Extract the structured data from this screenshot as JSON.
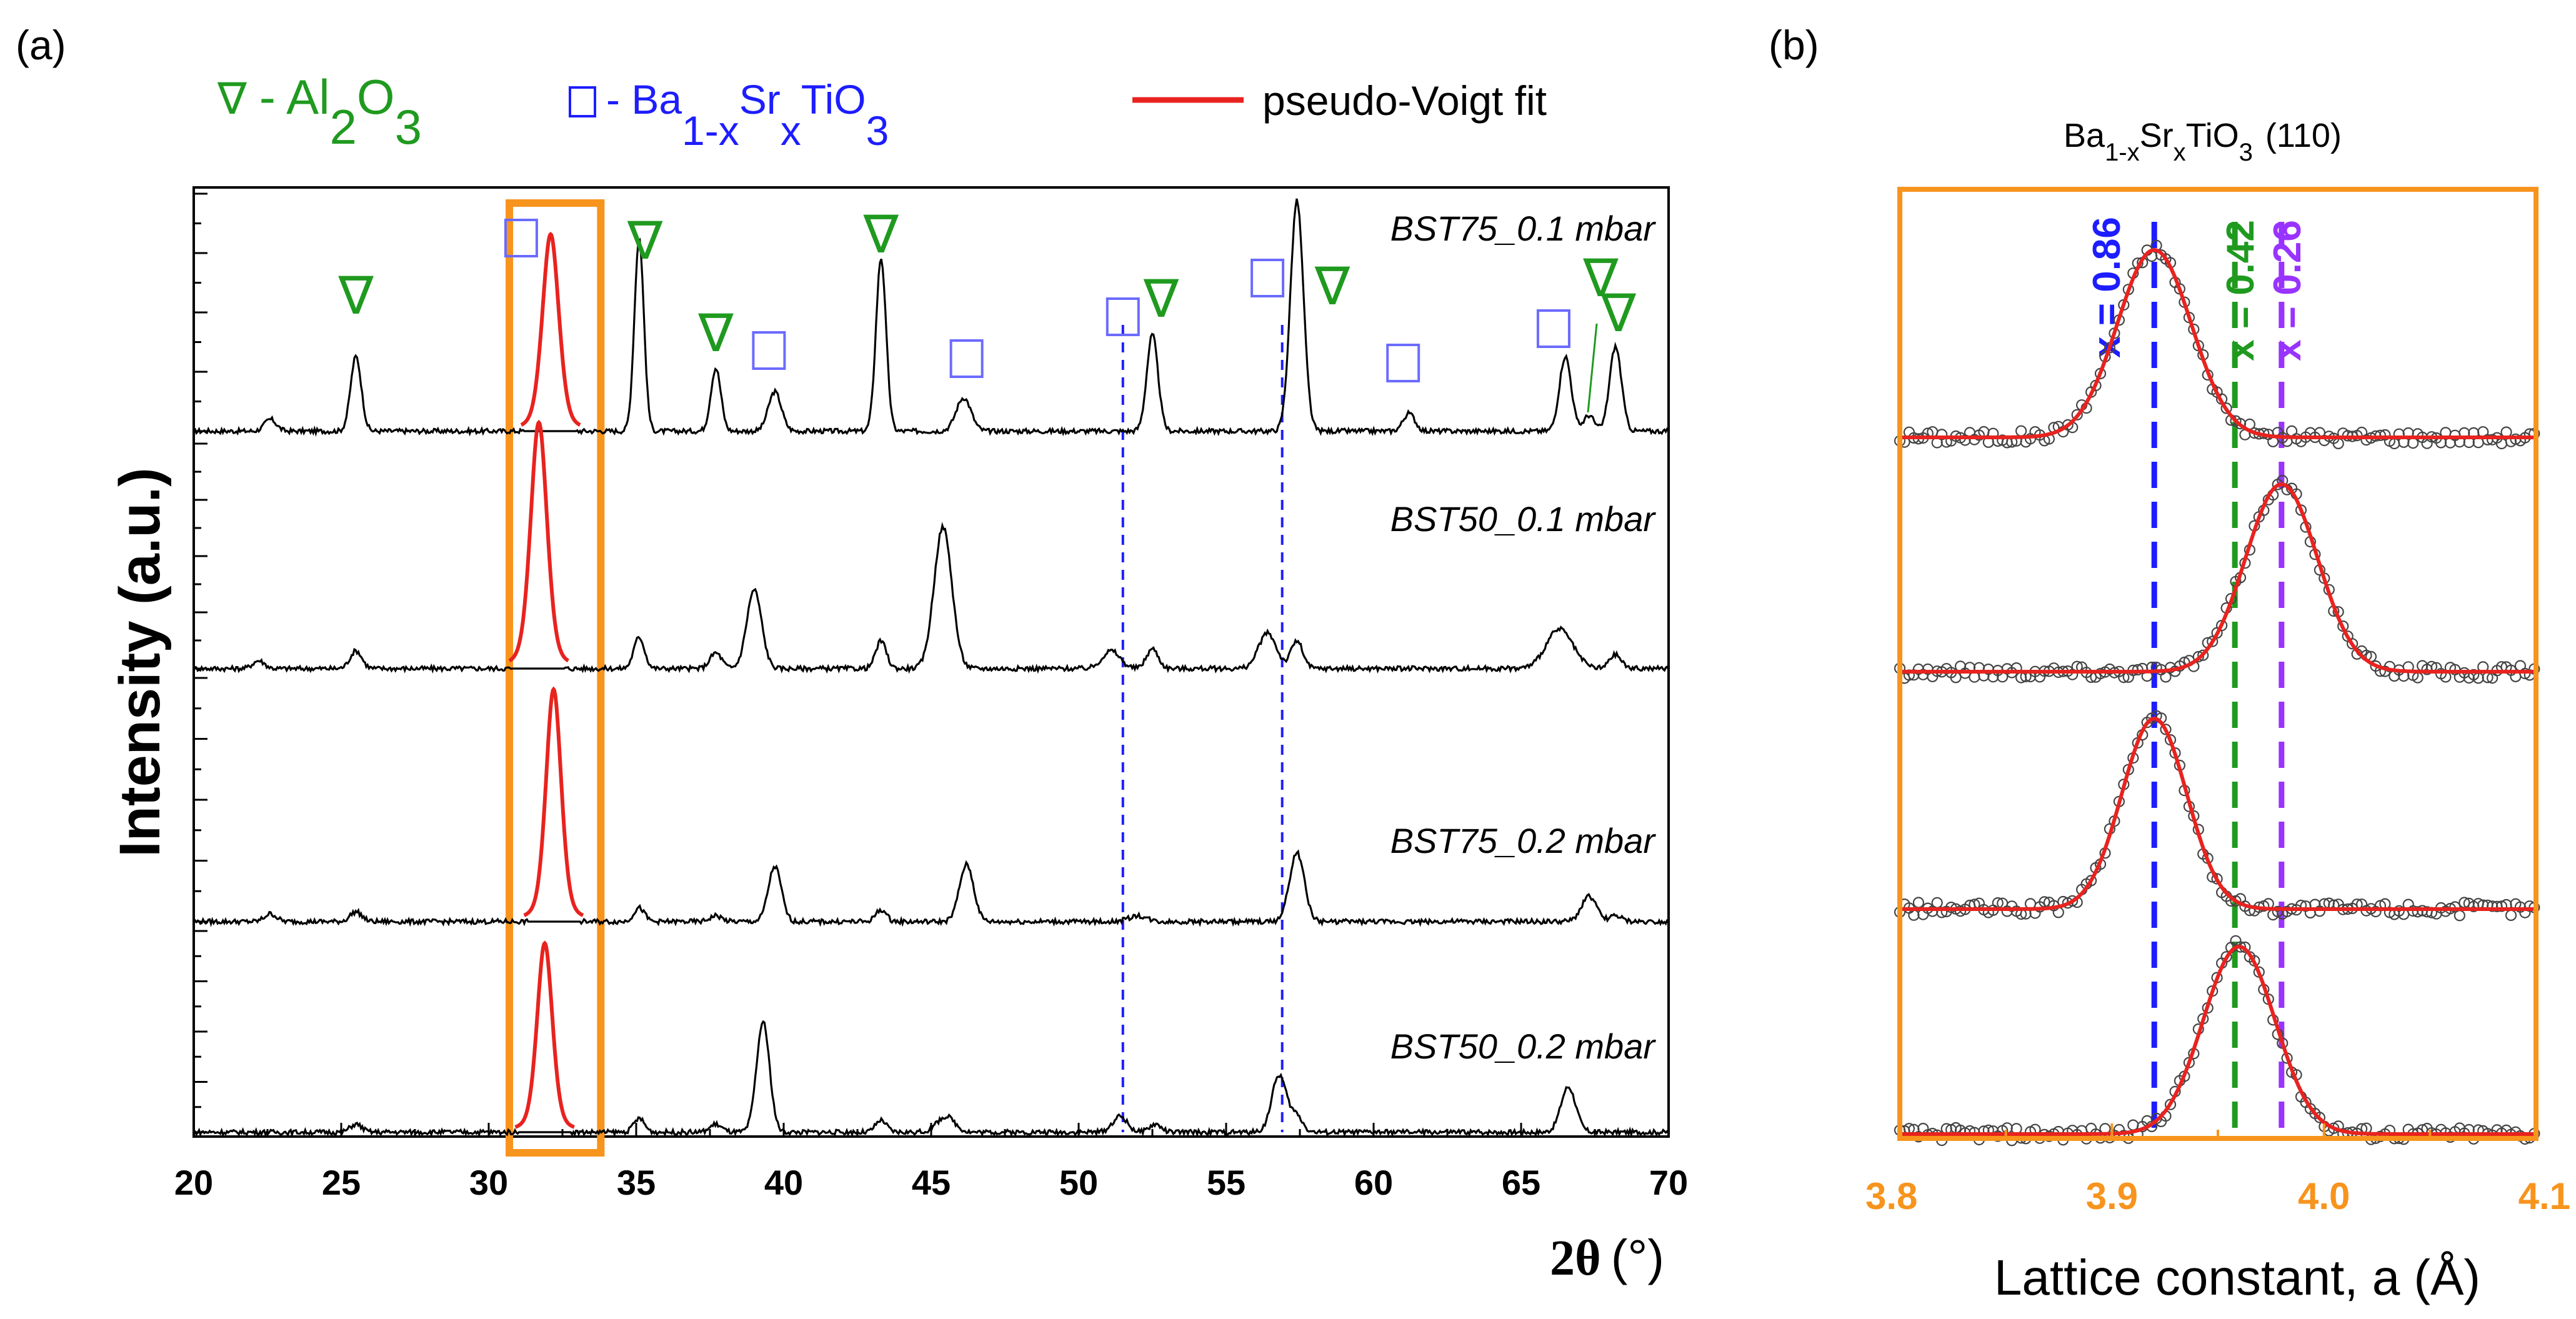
{
  "colors": {
    "black": "#000000",
    "fit_red": "#e8231f",
    "al2o3_green": "#1f9a1f",
    "bst_blue": "#1d1dff",
    "box_orange": "#f7941d",
    "purple": "#9933ff",
    "marker_grey": "#444444"
  },
  "panel_a": {
    "label": "(a)",
    "legend": {
      "al2o3": {
        "symbol": "∇",
        "sep": "- Al",
        "sub1": "2",
        "mid": "O",
        "sub2": "3"
      },
      "bst": {
        "sep": "- Ba",
        "sub1": "1-x",
        "mid": "Sr",
        "sub2": "x",
        "tail": "TiO",
        "sub3": "3"
      },
      "fit": "pseudo-Voigt fit"
    },
    "ylabel": "Intensity (a.u.)",
    "xlabel_main": "2θ",
    "xlabel_unit": "(°)"
  },
  "panel_b": {
    "label": "(b)",
    "title_base": "Ba",
    "title_sub1": "1-x",
    "title_mid": "Sr",
    "title_sub2": "x",
    "title_tail": "TiO",
    "title_sub3": "3",
    "title_hkl": "(110)",
    "xlabel": "Lattice constant, a (Å)"
  },
  "chart_data": [
    {
      "type": "line",
      "title": "",
      "xlabel": "2θ (°)",
      "ylabel": "Intensity (a.u.)",
      "xlim": [
        20,
        70
      ],
      "xticks": [
        20,
        25,
        30,
        35,
        40,
        45,
        50,
        55,
        60,
        65,
        70
      ],
      "highlight_range": [
        30.7,
        33.8
      ],
      "dashed_reference_lines": [
        51.5,
        56.9
      ],
      "series": [
        {
          "name": "BST75_0.1 mbar",
          "fit_peak": {
            "center": 32.1,
            "height": 100,
            "width": 0.28
          },
          "peaks": [
            {
              "x": 22.6,
              "h": 6,
              "w": 0.2
            },
            {
              "x": 25.5,
              "h": 38,
              "w": 0.18
            },
            {
              "x": 35.1,
              "h": 98,
              "w": 0.16
            },
            {
              "x": 37.7,
              "h": 32,
              "w": 0.17
            },
            {
              "x": 39.7,
              "h": 20,
              "w": 0.22
            },
            {
              "x": 43.3,
              "h": 88,
              "w": 0.17
            },
            {
              "x": 46.1,
              "h": 17,
              "w": 0.25
            },
            {
              "x": 52.5,
              "h": 49,
              "w": 0.19
            },
            {
              "x": 57.4,
              "h": 117,
              "w": 0.22
            },
            {
              "x": 61.2,
              "h": 9,
              "w": 0.2
            },
            {
              "x": 66.5,
              "h": 38,
              "w": 0.2
            },
            {
              "x": 67.3,
              "h": 8,
              "w": 0.18
            },
            {
              "x": 68.2,
              "h": 43,
              "w": 0.2
            }
          ],
          "markers": [
            {
              "x": 25.5,
              "kind": "al2o3"
            },
            {
              "x": 31.1,
              "kind": "bst"
            },
            {
              "x": 35.3,
              "kind": "al2o3"
            },
            {
              "x": 37.7,
              "kind": "al2o3"
            },
            {
              "x": 39.5,
              "kind": "bst"
            },
            {
              "x": 43.3,
              "kind": "al2o3"
            },
            {
              "x": 46.2,
              "kind": "bst"
            },
            {
              "x": 51.5,
              "kind": "bst"
            },
            {
              "x": 52.8,
              "kind": "al2o3"
            },
            {
              "x": 56.4,
              "kind": "bst"
            },
            {
              "x": 58.6,
              "kind": "al2o3"
            },
            {
              "x": 61.0,
              "kind": "bst"
            },
            {
              "x": 66.1,
              "kind": "bst"
            },
            {
              "x": 67.7,
              "kind": "al2o3"
            },
            {
              "x": 68.3,
              "kind": "al2o3"
            }
          ]
        },
        {
          "name": "BST50_0.1 mbar",
          "fit_peak": {
            "center": 31.7,
            "height": 125,
            "width": 0.28
          },
          "peaks": [
            {
              "x": 22.2,
              "h": 4,
              "w": 0.2
            },
            {
              "x": 25.5,
              "h": 9,
              "w": 0.2
            },
            {
              "x": 35.1,
              "h": 16,
              "w": 0.18
            },
            {
              "x": 37.7,
              "h": 8,
              "w": 0.2
            },
            {
              "x": 39.0,
              "h": 40,
              "w": 0.25
            },
            {
              "x": 43.3,
              "h": 14,
              "w": 0.18
            },
            {
              "x": 45.4,
              "h": 72,
              "w": 0.3
            },
            {
              "x": 51.1,
              "h": 9,
              "w": 0.3
            },
            {
              "x": 52.5,
              "h": 10,
              "w": 0.2
            },
            {
              "x": 56.4,
              "h": 18,
              "w": 0.3
            },
            {
              "x": 57.4,
              "h": 14,
              "w": 0.2
            },
            {
              "x": 66.3,
              "h": 20,
              "w": 0.45
            },
            {
              "x": 68.2,
              "h": 7,
              "w": 0.2
            }
          ]
        },
        {
          "name": "BST75_0.2 mbar",
          "fit_peak": {
            "center": 32.2,
            "height": 118,
            "width": 0.26
          },
          "peaks": [
            {
              "x": 22.6,
              "h": 4,
              "w": 0.2
            },
            {
              "x": 25.5,
              "h": 5,
              "w": 0.2
            },
            {
              "x": 35.1,
              "h": 7,
              "w": 0.18
            },
            {
              "x": 37.7,
              "h": 3,
              "w": 0.2
            },
            {
              "x": 39.7,
              "h": 28,
              "w": 0.22
            },
            {
              "x": 43.3,
              "h": 6,
              "w": 0.18
            },
            {
              "x": 46.2,
              "h": 29,
              "w": 0.24
            },
            {
              "x": 52.0,
              "h": 3,
              "w": 0.3
            },
            {
              "x": 57.4,
              "h": 35,
              "w": 0.25
            },
            {
              "x": 67.3,
              "h": 13,
              "w": 0.25
            },
            {
              "x": 68.2,
              "h": 3,
              "w": 0.2
            }
          ]
        },
        {
          "name": "BST50_0.2 mbar",
          "fit_peak": {
            "center": 31.9,
            "height": 96,
            "width": 0.26
          },
          "peaks": [
            {
              "x": 25.5,
              "h": 4,
              "w": 0.2
            },
            {
              "x": 35.1,
              "h": 7,
              "w": 0.18
            },
            {
              "x": 37.7,
              "h": 4,
              "w": 0.2
            },
            {
              "x": 39.3,
              "h": 56,
              "w": 0.22
            },
            {
              "x": 43.3,
              "h": 6,
              "w": 0.18
            },
            {
              "x": 45.5,
              "h": 8,
              "w": 0.3
            },
            {
              "x": 51.4,
              "h": 8,
              "w": 0.25
            },
            {
              "x": 52.6,
              "h": 4,
              "w": 0.2
            },
            {
              "x": 56.8,
              "h": 29,
              "w": 0.25
            },
            {
              "x": 57.4,
              "h": 8,
              "w": 0.2
            },
            {
              "x": 66.6,
              "h": 23,
              "w": 0.25
            }
          ]
        }
      ]
    },
    {
      "type": "scatter",
      "title": "Ba1-xSrxTiO3 (110)",
      "xlabel": "Lattice constant, a (Å)",
      "ylabel": "",
      "xlim": [
        3.8,
        4.1
      ],
      "xticks": [
        3.8,
        3.9,
        4.0,
        4.1
      ],
      "reference_lines": [
        {
          "x": 3.92,
          "label": "x = 0.86",
          "color": "blue"
        },
        {
          "x": 3.958,
          "label": "x = 0.42",
          "color": "green"
        },
        {
          "x": 3.98,
          "label": "x = 0.26",
          "color": "purple"
        }
      ],
      "series": [
        {
          "name": "BST75_0.1 mbar",
          "peak_center": 3.92,
          "fwhm": 0.041,
          "relative_height": 1.0
        },
        {
          "name": "BST50_0.1 mbar",
          "peak_center": 3.98,
          "fwhm": 0.04,
          "relative_height": 1.0
        },
        {
          "name": "BST75_0.2 mbar",
          "peak_center": 3.92,
          "fwhm": 0.036,
          "relative_height": 1.0
        },
        {
          "name": "BST50_0.2 mbar",
          "peak_center": 3.96,
          "fwhm": 0.04,
          "relative_height": 1.0
        }
      ]
    }
  ]
}
